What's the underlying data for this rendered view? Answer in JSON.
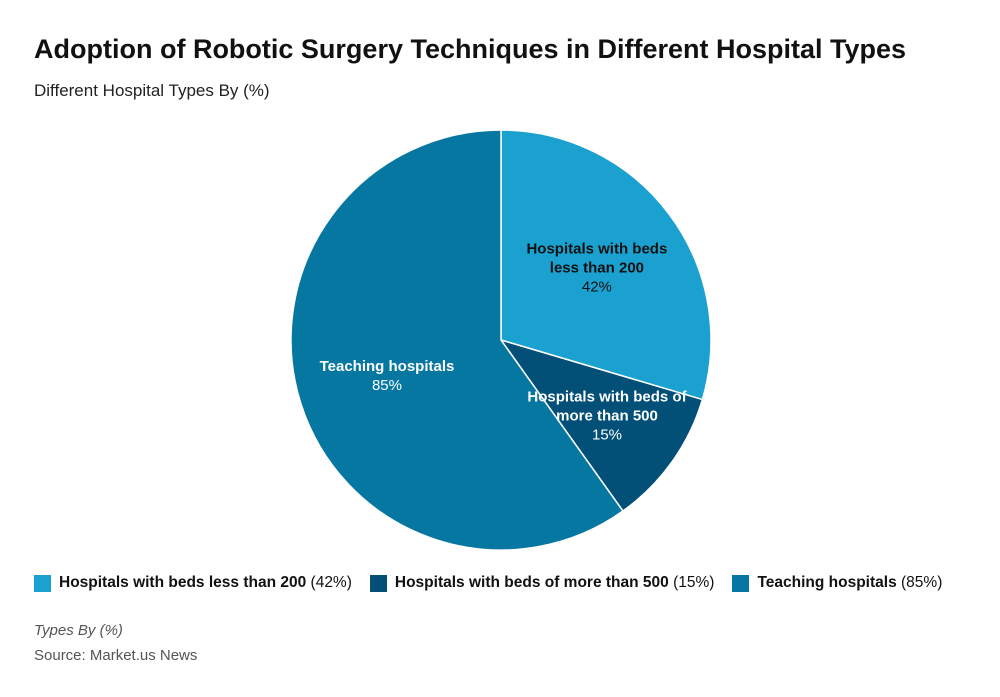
{
  "chart_data": {
    "type": "pie",
    "title": "Adoption of Robotic Surgery Techniques in Different Hospital Types",
    "subtitle": "Different Hospital Types By (%)",
    "categories": [
      "Hospitals with beds less than 200",
      "Hospitals with beds of more than 500",
      "Teaching hospitals"
    ],
    "values": [
      42,
      15,
      85
    ],
    "value_labels": [
      "42%",
      "15%",
      "85%"
    ],
    "legend_value_labels": [
      "(42%)",
      "(15%)",
      "(85%)"
    ],
    "colors": [
      "#1ba1cf",
      "#024f78",
      "#0677a1"
    ],
    "label_colors": [
      "#111111",
      "#ffffff",
      "#ffffff"
    ],
    "footnote": "Types By (%)",
    "source": "Source: Market.us News"
  }
}
